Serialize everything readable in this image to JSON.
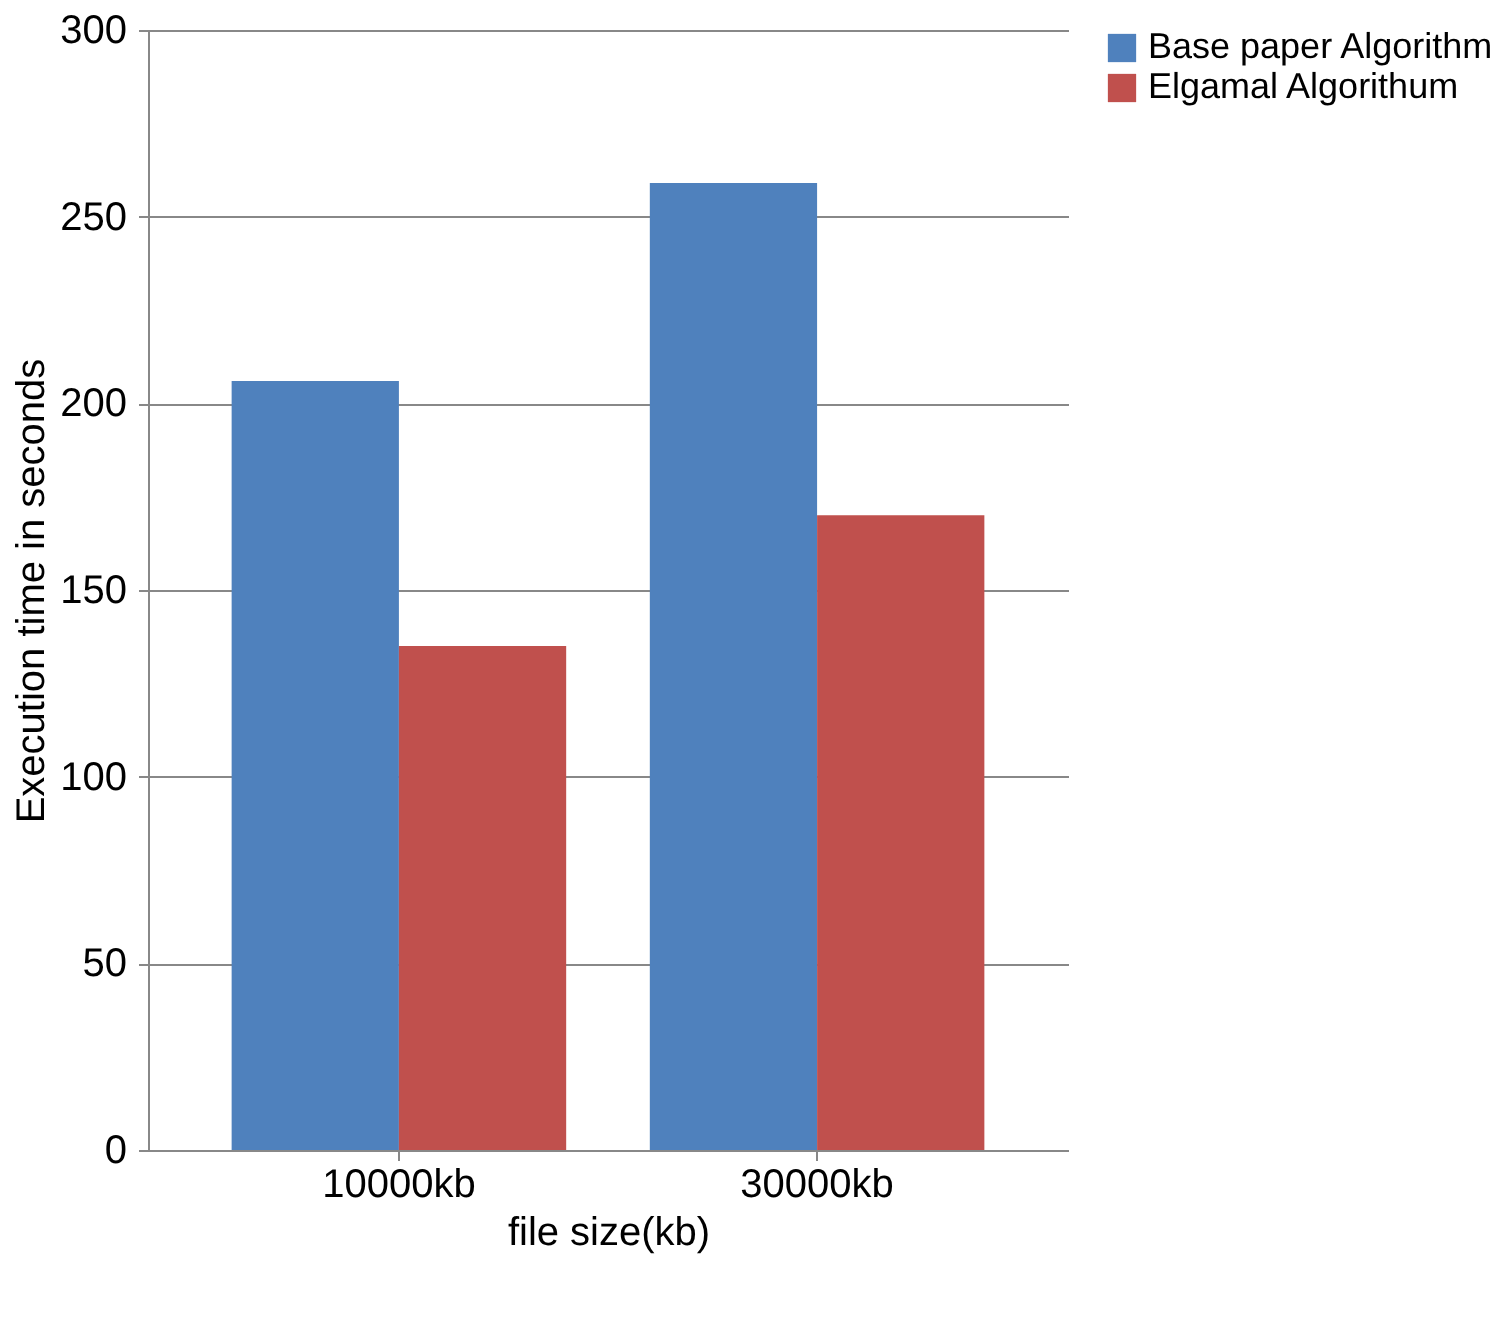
{
  "chart_data": {
    "type": "bar",
    "xlabel": "file size(kb)",
    "ylabel": "Execution time in seconds",
    "categories": [
      "10000kb",
      "30000kb"
    ],
    "series": [
      {
        "name": "Base paper Algorithm",
        "color": "#4f81bd",
        "values": [
          206,
          259
        ]
      },
      {
        "name": "Elgamal Algorithum",
        "color": "#c0504d",
        "values": [
          135,
          170
        ]
      }
    ],
    "ylim": [
      0,
      300
    ],
    "yticks": [
      0,
      50,
      100,
      150,
      200,
      250,
      300
    ],
    "grid": "y",
    "legend": "right"
  }
}
